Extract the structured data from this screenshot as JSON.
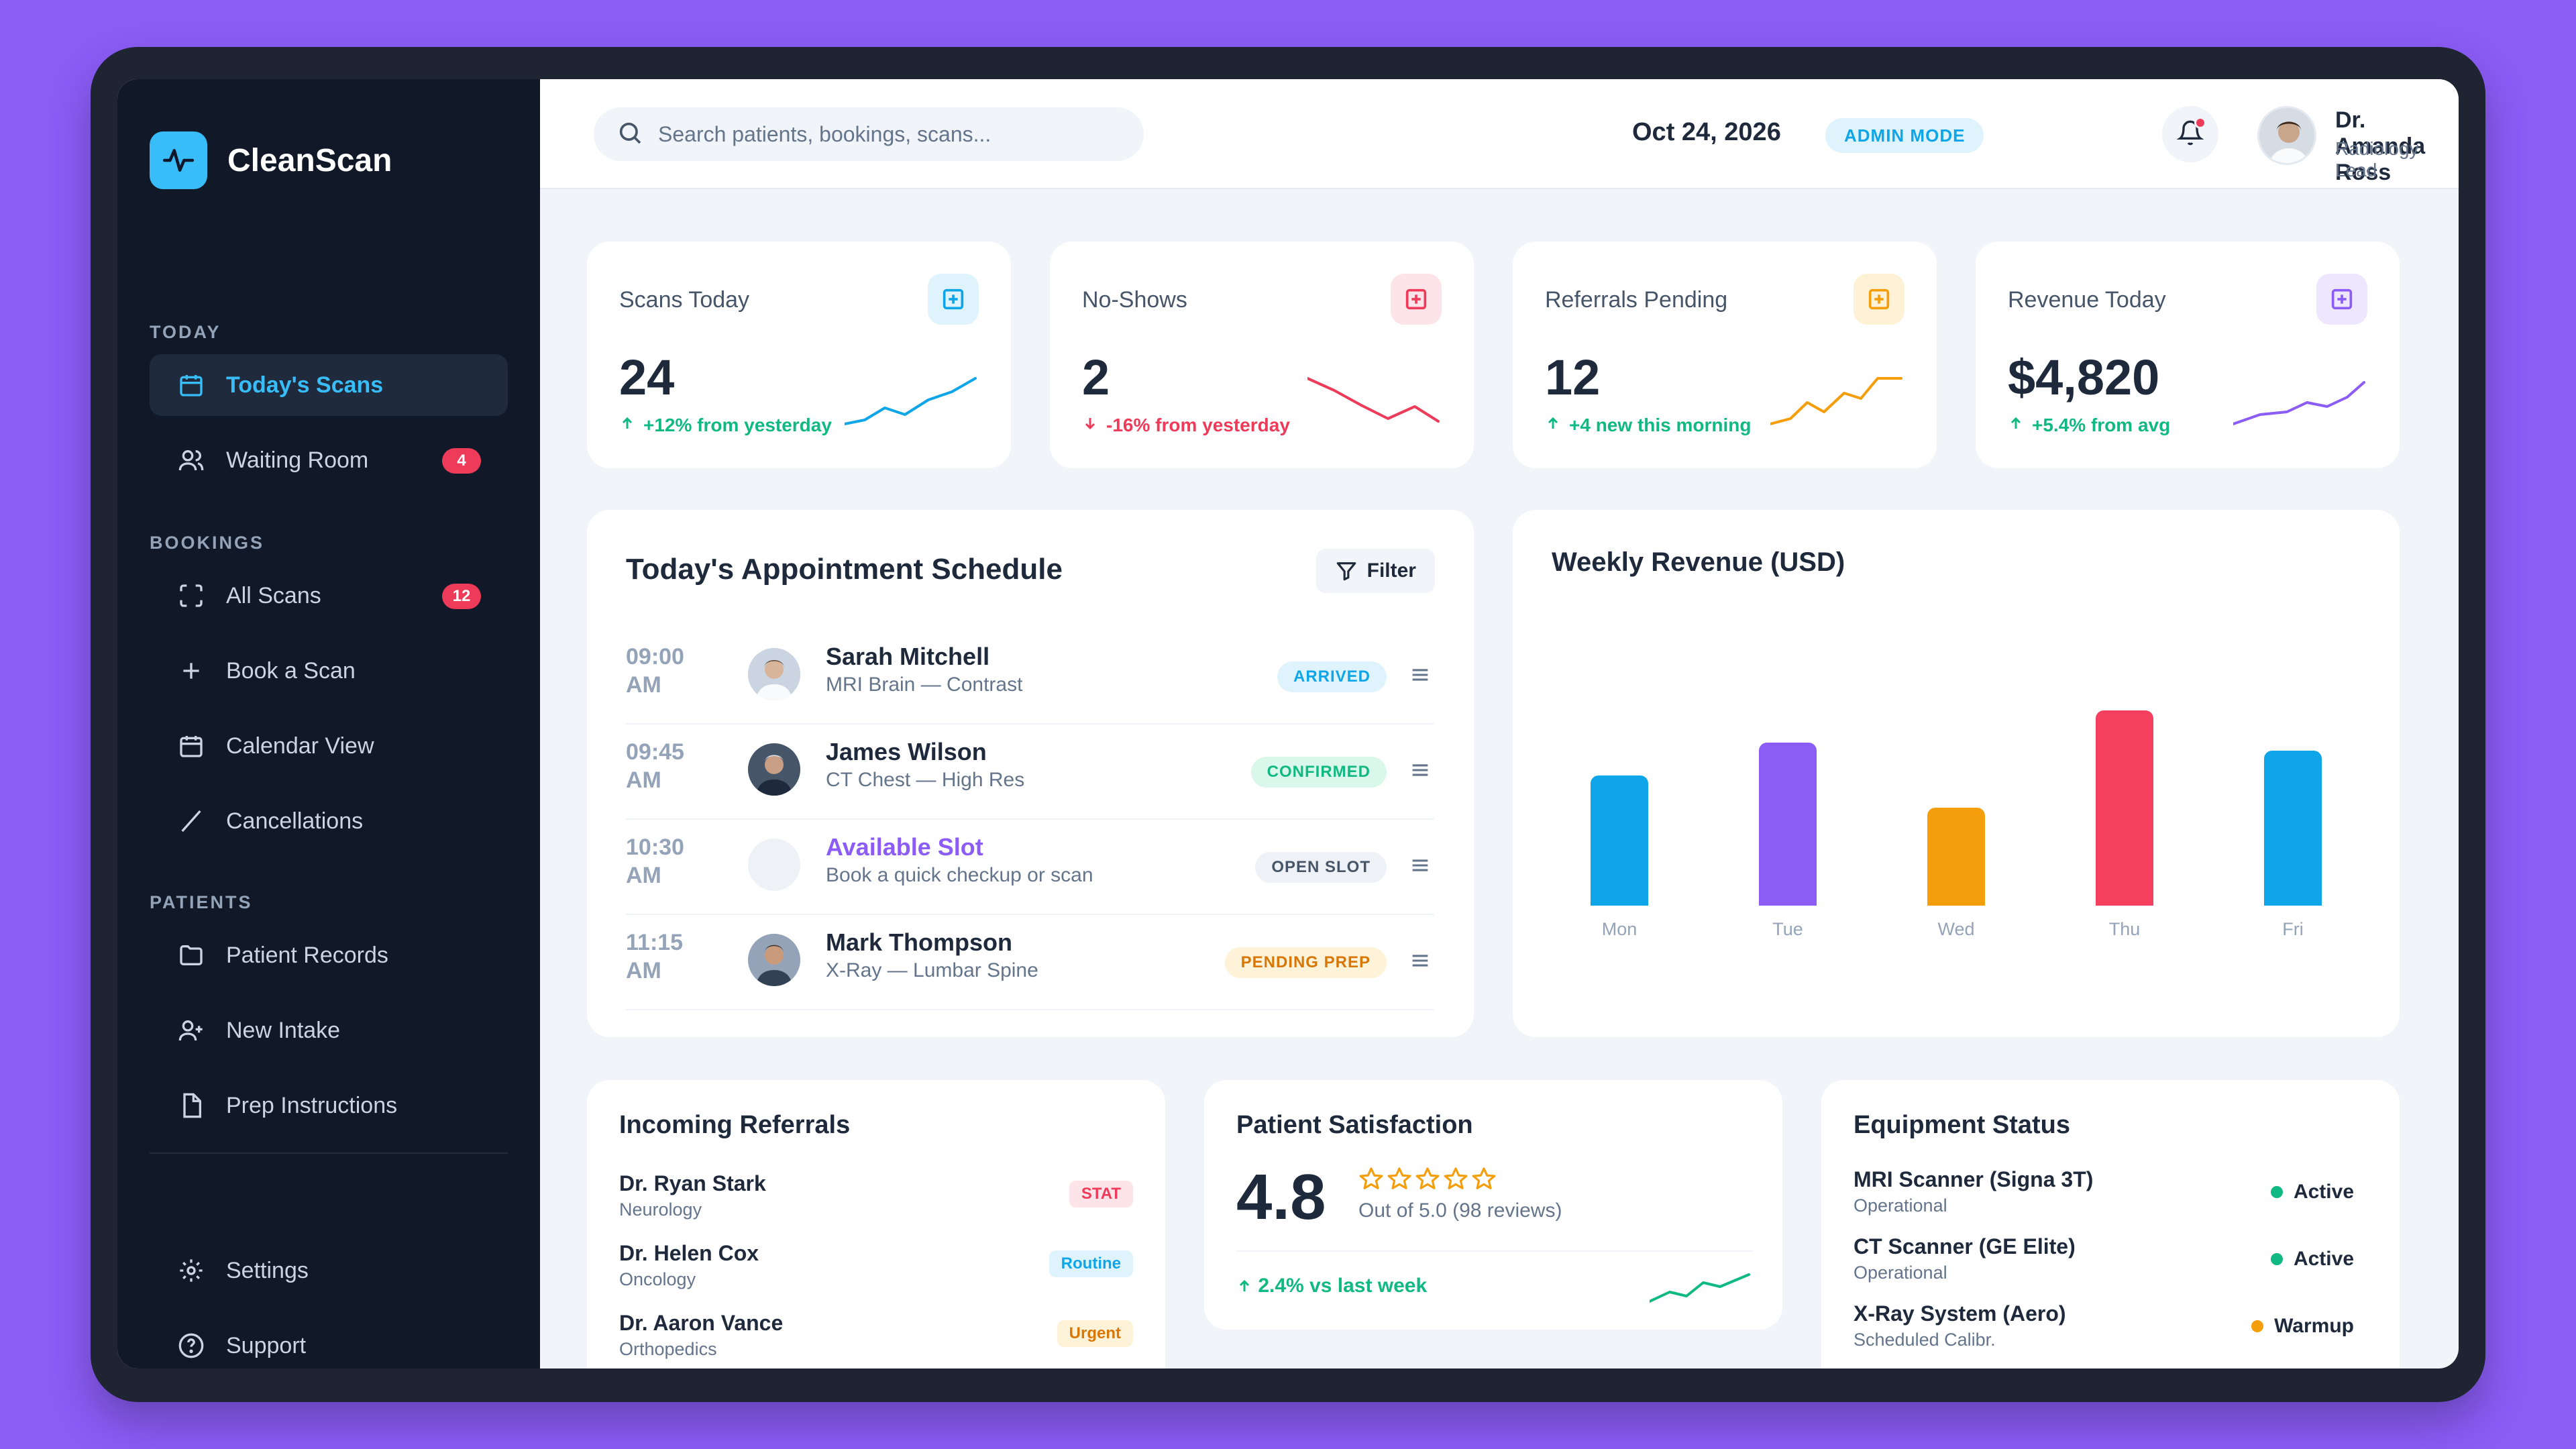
{
  "app": {
    "name": "CleanScan"
  },
  "sidebar": {
    "sections": [
      {
        "title": "TODAY"
      },
      {
        "title": "BOOKINGS"
      },
      {
        "title": "PATIENTS"
      }
    ],
    "items": [
      {
        "label": "Today's Scans",
        "icon": "calendar-icon",
        "active": true
      },
      {
        "label": "Waiting Room",
        "icon": "users-icon",
        "badge": "4"
      },
      {
        "label": "All Scans",
        "icon": "scan-frame-icon",
        "badge": "12"
      },
      {
        "label": "Book a Scan",
        "icon": "plus-icon"
      },
      {
        "label": "Calendar View",
        "icon": "calendar-icon"
      },
      {
        "label": "Cancellations",
        "icon": "slash-icon"
      },
      {
        "label": "Patient Records",
        "icon": "folder-icon"
      },
      {
        "label": "New Intake",
        "icon": "user-plus-icon"
      },
      {
        "label": "Prep Instructions",
        "icon": "file-icon"
      },
      {
        "label": "Settings",
        "icon": "gear-icon"
      },
      {
        "label": "Support",
        "icon": "help-icon"
      }
    ]
  },
  "header": {
    "search_placeholder": "Search patients, bookings, scans...",
    "date": "Oct 24, 2026",
    "mode": "ADMIN MODE",
    "user": {
      "name": "Dr. Amanda Ross",
      "role": "Radiology Lead"
    }
  },
  "stats": [
    {
      "label": "Scans Today",
      "value": "24",
      "trend": "+12% from yesterday",
      "direction": "up",
      "color": "#0ea5e9",
      "icon_bg": "#dff3fd"
    },
    {
      "label": "No-Shows",
      "value": "2",
      "trend": "-16% from yesterday",
      "direction": "down",
      "color": "#ef3b5a",
      "icon_bg": "#fde4e8"
    },
    {
      "label": "Referrals Pending",
      "value": "12",
      "trend": "+4 new this morning",
      "direction": "up",
      "color": "#f59e0b",
      "icon_bg": "#fef2d6"
    },
    {
      "label": "Revenue Today",
      "value": "$4,820",
      "trend": "+5.4% from avg",
      "direction": "up",
      "color": "#8b5cf6",
      "icon_bg": "#ede6fd"
    }
  ],
  "schedule": {
    "title": "Today's Appointment Schedule",
    "filter_label": "Filter",
    "rows": [
      {
        "time": "09:00 AM",
        "name": "Sarah Mitchell",
        "detail": "MRI Brain — Contrast",
        "status": "ARRIVED",
        "status_color": "#0ea5e9",
        "status_bg": "#dff3fd"
      },
      {
        "time": "09:45 AM",
        "name": "James Wilson",
        "detail": "CT Chest — High Res",
        "status": "CONFIRMED",
        "status_color": "#10b981",
        "status_bg": "#daf7ec"
      },
      {
        "time": "10:30 AM",
        "name": "Available Slot",
        "detail": "Book a quick checkup or scan",
        "status": "OPEN SLOT",
        "status_color": "#475569",
        "status_bg": "#eef1f5"
      },
      {
        "time": "11:15 AM",
        "name": "Mark Thompson",
        "detail": "X-Ray — Lumbar Spine",
        "status": "PENDING PREP",
        "status_color": "#d97706",
        "status_bg": "#fef3d8"
      }
    ]
  },
  "chart_data": {
    "type": "bar",
    "title": "Weekly Revenue (USD)",
    "categories": [
      "Mon",
      "Tue",
      "Wed",
      "Thu",
      "Fri"
    ],
    "values": [
      4000,
      5000,
      3000,
      6000,
      4750
    ],
    "colors": [
      "#0ea5e9",
      "#8b5cf6",
      "#f59e0b",
      "#f43f5e",
      "#0ea5e9"
    ],
    "ylim": [
      0,
      7000
    ],
    "grid": false
  },
  "referrals": {
    "title": "Incoming Referrals",
    "items": [
      {
        "name": "Dr. Ryan Stark",
        "specialty": "Neurology",
        "tag": "STAT",
        "tag_color": "#ef3b5a",
        "tag_bg": "#fde4e8"
      },
      {
        "name": "Dr. Helen Cox",
        "specialty": "Oncology",
        "tag": "Routine",
        "tag_color": "#0ea5e9",
        "tag_bg": "#dff3fd"
      },
      {
        "name": "Dr. Aaron Vance",
        "specialty": "Orthopedics",
        "tag": "Urgent",
        "tag_color": "#d97706",
        "tag_bg": "#fef3d8"
      }
    ]
  },
  "satisfaction": {
    "title": "Patient Satisfaction",
    "score": "4.8",
    "rating": 4.8,
    "subtitle": "Out of 5.0 (98 reviews)",
    "trend": "2.4% vs last week"
  },
  "equipment": {
    "title": "Equipment Status",
    "items": [
      {
        "name": "MRI Scanner (Signa 3T)",
        "sub": "Operational",
        "status": "Active",
        "dot": "#10b981"
      },
      {
        "name": "CT Scanner (GE Elite)",
        "sub": "Operational",
        "status": "Active",
        "dot": "#10b981"
      },
      {
        "name": "X-Ray System (Aero)",
        "sub": "Scheduled Calibr.",
        "status": "Warmup",
        "dot": "#f59e0b"
      }
    ]
  }
}
